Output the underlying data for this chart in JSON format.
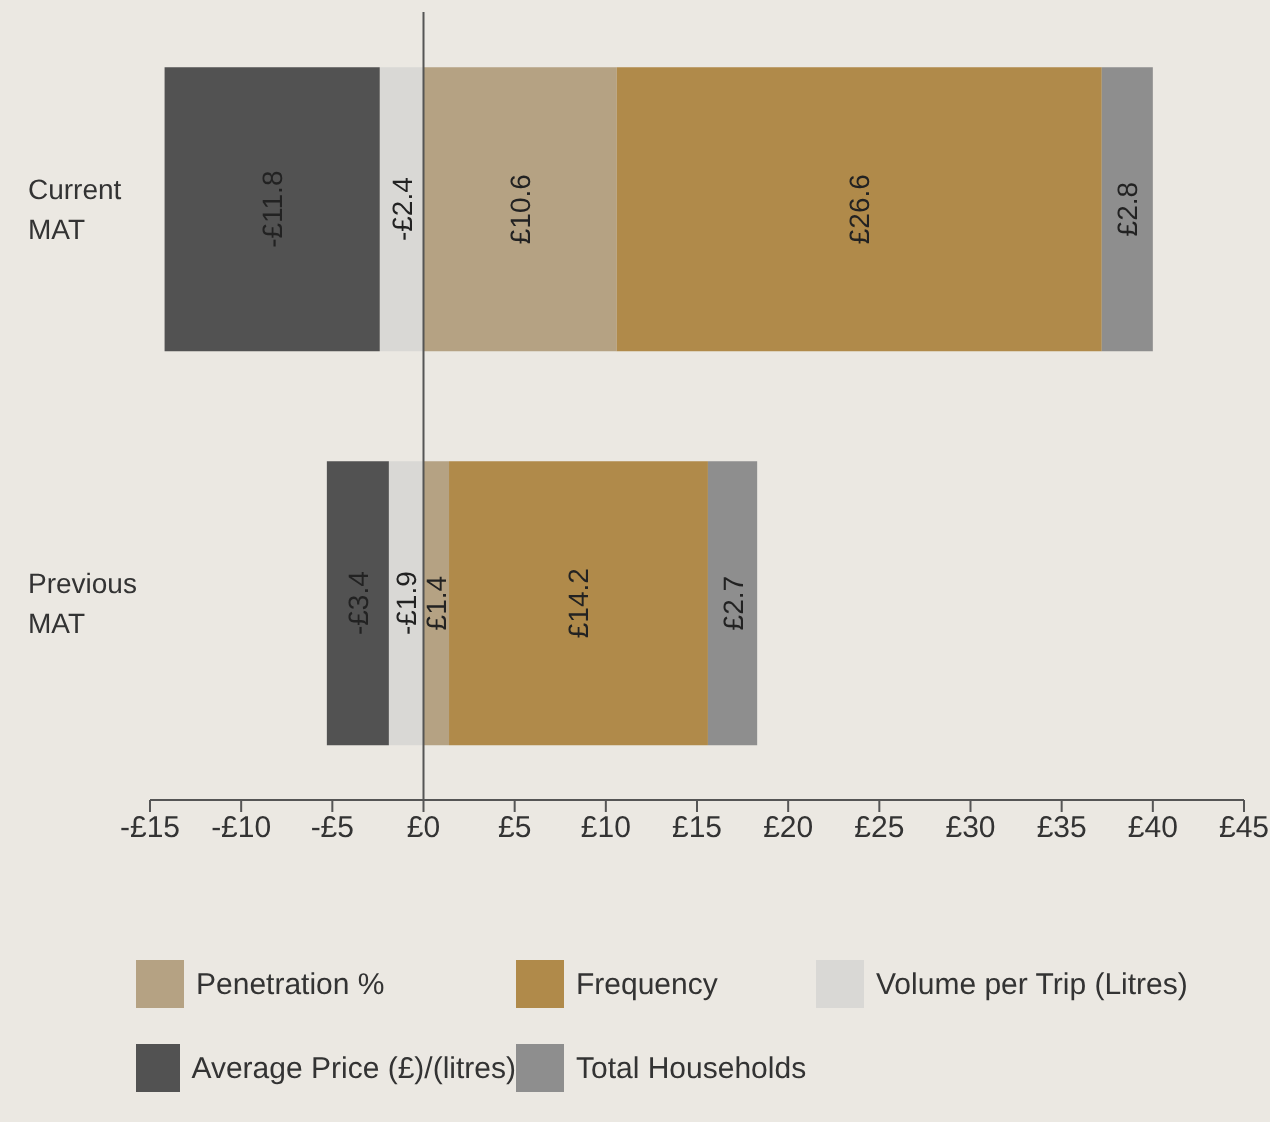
{
  "chart_data": {
    "type": "bar",
    "orientation": "horizontal",
    "stacked": true,
    "categories": [
      "Current MAT",
      "Previous MAT"
    ],
    "series": [
      {
        "name": "Penetration %",
        "color": "#b5a283",
        "values": [
          10.6,
          1.4
        ],
        "value_labels": [
          "£10.6",
          "£1.4"
        ]
      },
      {
        "name": "Frequency",
        "color": "#b08a4a",
        "values": [
          26.6,
          14.2
        ],
        "value_labels": [
          "£26.6",
          "£14.2"
        ]
      },
      {
        "name": "Volume per Trip (Litres)",
        "color": "#d9d8d5",
        "values": [
          -2.4,
          -1.9
        ],
        "value_labels": [
          "-£2.4",
          "-£1.9"
        ]
      },
      {
        "name": "Average Price (£)/(litres)",
        "color": "#525252",
        "values": [
          -11.8,
          -3.4
        ],
        "value_labels": [
          "-£11.8",
          "-£3.4"
        ]
      },
      {
        "name": "Total Households",
        "color": "#8e8e8e",
        "values": [
          2.8,
          2.7
        ],
        "value_labels": [
          "£2.8",
          "£2.7"
        ]
      }
    ],
    "xlim": [
      -15,
      45
    ],
    "xticks": [
      {
        "value": -15,
        "label": "-£15"
      },
      {
        "value": -10,
        "label": "-£10"
      },
      {
        "value": -5,
        "label": "-£5"
      },
      {
        "value": 0,
        "label": "£0"
      },
      {
        "value": 5,
        "label": "£5"
      },
      {
        "value": 10,
        "label": "£10"
      },
      {
        "value": 15,
        "label": "£15"
      },
      {
        "value": 20,
        "label": "£20"
      },
      {
        "value": 25,
        "label": "£25"
      },
      {
        "value": 30,
        "label": "£30"
      },
      {
        "value": 35,
        "label": "£35"
      },
      {
        "value": 40,
        "label": "£40"
      },
      {
        "value": 45,
        "label": "£45"
      }
    ],
    "ref_lines": [
      {
        "axis": "x",
        "value": 0,
        "color": "#555555"
      }
    ],
    "grid": false,
    "legend": "bottom"
  }
}
